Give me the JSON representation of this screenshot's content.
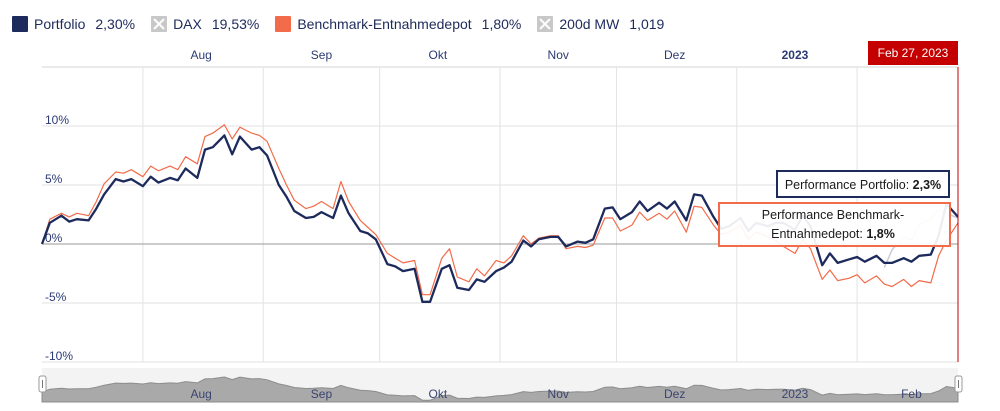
{
  "legend": [
    {
      "name": "Portfolio",
      "value": "2,30%",
      "color": "#1d2a5c",
      "hidden": false
    },
    {
      "name": "DAX",
      "value": "19,53%",
      "color": "#c8c8c8",
      "hidden": true
    },
    {
      "name": "Benchmark-Entnahmedepot",
      "value": "1,80%",
      "color": "#f26b4a",
      "hidden": false
    },
    {
      "name": "200d MW",
      "value": "1,019",
      "color": "#c8c8c8",
      "hidden": true
    }
  ],
  "crosshair": {
    "label": "Feb 27, 2023",
    "color": "#c40000"
  },
  "tooltips": {
    "portfolio": {
      "label": "Performance Portfolio:",
      "value": "2,3%",
      "color": "#1d2a5c"
    },
    "benchmark": {
      "label_line1": "Performance Benchmark-",
      "label_line2": "Entnahmedepot:",
      "value": "1,8%",
      "color": "#f26b4a"
    }
  },
  "navigator": {
    "labels": [
      "Aug",
      "Sep",
      "Okt",
      "Nov",
      "Dez",
      "2023",
      "Feb"
    ]
  },
  "chart_data": {
    "type": "line",
    "x_axis": {
      "ticks": [
        "Aug",
        "Sep",
        "Okt",
        "Nov",
        "Dez",
        "2023"
      ],
      "bold_ticks": [
        "2023"
      ],
      "start": "2022-07-06",
      "end": "2023-02-27"
    },
    "y_axis": {
      "ticks": [
        "10%",
        "5%",
        "0%",
        "-5%",
        "-10%"
      ],
      "tick_values": [
        10,
        5,
        0,
        -5,
        -10
      ],
      "ylim": [
        -10,
        15
      ],
      "unit": "%"
    },
    "grid": true,
    "series": [
      {
        "name": "Portfolio",
        "color": "#1d2a5c",
        "points": [
          [
            "2022-07-06",
            0.0
          ],
          [
            "2022-07-08",
            1.8
          ],
          [
            "2022-07-11",
            2.4
          ],
          [
            "2022-07-13",
            1.9
          ],
          [
            "2022-07-15",
            2.1
          ],
          [
            "2022-07-18",
            2.0
          ],
          [
            "2022-07-20",
            3.0
          ],
          [
            "2022-07-22",
            4.2
          ],
          [
            "2022-07-25",
            5.5
          ],
          [
            "2022-07-27",
            5.3
          ],
          [
            "2022-07-29",
            5.5
          ],
          [
            "2022-08-01",
            4.9
          ],
          [
            "2022-08-03",
            5.7
          ],
          [
            "2022-08-05",
            5.2
          ],
          [
            "2022-08-08",
            5.6
          ],
          [
            "2022-08-10",
            5.4
          ],
          [
            "2022-08-12",
            6.4
          ],
          [
            "2022-08-15",
            5.6
          ],
          [
            "2022-08-17",
            8.0
          ],
          [
            "2022-08-19",
            8.2
          ],
          [
            "2022-08-22",
            9.2
          ],
          [
            "2022-08-24",
            7.6
          ],
          [
            "2022-08-26",
            9.1
          ],
          [
            "2022-08-29",
            8.0
          ],
          [
            "2022-08-31",
            8.2
          ],
          [
            "2022-09-02",
            7.5
          ],
          [
            "2022-09-05",
            5.0
          ],
          [
            "2022-09-07",
            4.0
          ],
          [
            "2022-09-09",
            2.8
          ],
          [
            "2022-09-12",
            2.2
          ],
          [
            "2022-09-14",
            2.3
          ],
          [
            "2022-09-16",
            2.7
          ],
          [
            "2022-09-19",
            2.2
          ],
          [
            "2022-09-21",
            4.1
          ],
          [
            "2022-09-23",
            2.6
          ],
          [
            "2022-09-26",
            1.1
          ],
          [
            "2022-09-28",
            0.9
          ],
          [
            "2022-09-30",
            0.4
          ],
          [
            "2022-10-03",
            -1.7
          ],
          [
            "2022-10-05",
            -1.9
          ],
          [
            "2022-10-07",
            -2.3
          ],
          [
            "2022-10-10",
            -2.1
          ],
          [
            "2022-10-12",
            -4.9
          ],
          [
            "2022-10-14",
            -4.9
          ],
          [
            "2022-10-17",
            -2.1
          ],
          [
            "2022-10-19",
            -1.8
          ],
          [
            "2022-10-21",
            -3.7
          ],
          [
            "2022-10-24",
            -3.9
          ],
          [
            "2022-10-26",
            -3.0
          ],
          [
            "2022-10-28",
            -3.2
          ],
          [
            "2022-10-31",
            -2.3
          ],
          [
            "2022-11-02",
            -2.0
          ],
          [
            "2022-11-04",
            -1.5
          ],
          [
            "2022-11-07",
            0.3
          ],
          [
            "2022-11-09",
            -0.2
          ],
          [
            "2022-11-11",
            0.4
          ],
          [
            "2022-11-14",
            0.6
          ],
          [
            "2022-11-16",
            0.6
          ],
          [
            "2022-11-18",
            -0.2
          ],
          [
            "2022-11-21",
            0.2
          ],
          [
            "2022-11-23",
            0.1
          ],
          [
            "2022-11-25",
            0.4
          ],
          [
            "2022-11-28",
            3.0
          ],
          [
            "2022-11-30",
            3.1
          ],
          [
            "2022-12-02",
            2.1
          ],
          [
            "2022-12-05",
            2.7
          ],
          [
            "2022-12-07",
            3.6
          ],
          [
            "2022-12-09",
            2.8
          ],
          [
            "2022-12-12",
            3.5
          ],
          [
            "2022-12-14",
            3.0
          ],
          [
            "2022-12-16",
            3.6
          ],
          [
            "2022-12-19",
            2.0
          ],
          [
            "2022-12-21",
            4.2
          ],
          [
            "2022-12-23",
            4.1
          ],
          [
            "2022-12-26",
            2.3
          ],
          [
            "2022-12-28",
            1.3
          ],
          [
            "2022-12-30",
            1.5
          ],
          [
            "2023-01-02",
            2.2
          ],
          [
            "2023-01-04",
            1.1
          ],
          [
            "2023-01-06",
            1.8
          ],
          [
            "2023-01-09",
            1.5
          ],
          [
            "2023-01-11",
            1.8
          ],
          [
            "2023-01-13",
            1.8
          ],
          [
            "2023-01-16",
            1.2
          ],
          [
            "2023-01-18",
            2.4
          ],
          [
            "2023-01-20",
            1.5
          ],
          [
            "2023-01-23",
            -1.8
          ],
          [
            "2023-01-25",
            -0.8
          ],
          [
            "2023-01-27",
            -1.6
          ],
          [
            "2023-01-30",
            -1.3
          ],
          [
            "2023-02-01",
            -1.1
          ],
          [
            "2023-02-03",
            -1.5
          ],
          [
            "2023-02-06",
            -1.0
          ],
          [
            "2023-02-08",
            -1.6
          ],
          [
            "2023-02-10",
            -1.6
          ],
          [
            "2023-02-13",
            -1.2
          ],
          [
            "2023-02-15",
            -1.5
          ],
          [
            "2023-02-17",
            -1.0
          ],
          [
            "2023-02-20",
            -0.9
          ],
          [
            "2023-02-22",
            0.7
          ],
          [
            "2023-02-24",
            3.4
          ],
          [
            "2023-02-27",
            2.3
          ]
        ]
      },
      {
        "name": "Benchmark-Entnahmedepot",
        "color": "#f26b4a",
        "points": [
          [
            "2022-07-06",
            0.0
          ],
          [
            "2022-07-08",
            2.1
          ],
          [
            "2022-07-11",
            2.6
          ],
          [
            "2022-07-13",
            2.3
          ],
          [
            "2022-07-15",
            2.6
          ],
          [
            "2022-07-18",
            2.4
          ],
          [
            "2022-07-20",
            3.6
          ],
          [
            "2022-07-22",
            5.1
          ],
          [
            "2022-07-25",
            6.1
          ],
          [
            "2022-07-27",
            6.0
          ],
          [
            "2022-07-29",
            6.3
          ],
          [
            "2022-08-01",
            5.7
          ],
          [
            "2022-08-03",
            6.6
          ],
          [
            "2022-08-05",
            6.2
          ],
          [
            "2022-08-08",
            6.6
          ],
          [
            "2022-08-10",
            6.3
          ],
          [
            "2022-08-12",
            7.4
          ],
          [
            "2022-08-15",
            6.8
          ],
          [
            "2022-08-17",
            9.1
          ],
          [
            "2022-08-19",
            9.4
          ],
          [
            "2022-08-22",
            10.1
          ],
          [
            "2022-08-24",
            8.9
          ],
          [
            "2022-08-26",
            9.9
          ],
          [
            "2022-08-29",
            9.4
          ],
          [
            "2022-08-31",
            9.2
          ],
          [
            "2022-09-02",
            8.7
          ],
          [
            "2022-09-05",
            6.4
          ],
          [
            "2022-09-07",
            5.0
          ],
          [
            "2022-09-09",
            3.7
          ],
          [
            "2022-09-12",
            3.0
          ],
          [
            "2022-09-14",
            3.2
          ],
          [
            "2022-09-16",
            3.6
          ],
          [
            "2022-09-19",
            3.0
          ],
          [
            "2022-09-21",
            5.3
          ],
          [
            "2022-09-23",
            3.6
          ],
          [
            "2022-09-26",
            2.0
          ],
          [
            "2022-09-28",
            1.4
          ],
          [
            "2022-09-30",
            0.8
          ],
          [
            "2022-10-03",
            -0.8
          ],
          [
            "2022-10-05",
            -1.2
          ],
          [
            "2022-10-07",
            -1.6
          ],
          [
            "2022-10-10",
            -1.4
          ],
          [
            "2022-10-12",
            -4.3
          ],
          [
            "2022-10-14",
            -4.3
          ],
          [
            "2022-10-17",
            -1.2
          ],
          [
            "2022-10-19",
            -0.4
          ],
          [
            "2022-10-21",
            -2.8
          ],
          [
            "2022-10-24",
            -3.2
          ],
          [
            "2022-10-26",
            -2.1
          ],
          [
            "2022-10-28",
            -2.7
          ],
          [
            "2022-10-31",
            -1.4
          ],
          [
            "2022-11-02",
            -1.6
          ],
          [
            "2022-11-04",
            -1.0
          ],
          [
            "2022-11-07",
            0.7
          ],
          [
            "2022-11-09",
            0.0
          ],
          [
            "2022-11-11",
            0.5
          ],
          [
            "2022-11-14",
            0.7
          ],
          [
            "2022-11-16",
            0.7
          ],
          [
            "2022-11-18",
            -0.4
          ],
          [
            "2022-11-21",
            -0.2
          ],
          [
            "2022-11-23",
            -0.3
          ],
          [
            "2022-11-25",
            -0.1
          ],
          [
            "2022-11-28",
            2.2
          ],
          [
            "2022-11-30",
            2.2
          ],
          [
            "2022-12-02",
            1.1
          ],
          [
            "2022-12-05",
            1.6
          ],
          [
            "2022-12-07",
            2.7
          ],
          [
            "2022-12-09",
            2.0
          ],
          [
            "2022-12-12",
            2.6
          ],
          [
            "2022-12-14",
            2.1
          ],
          [
            "2022-12-16",
            2.8
          ],
          [
            "2022-12-19",
            1.0
          ],
          [
            "2022-12-21",
            3.2
          ],
          [
            "2022-12-23",
            3.1
          ],
          [
            "2022-12-26",
            1.6
          ],
          [
            "2022-12-28",
            0.8
          ],
          [
            "2022-12-30",
            1.0
          ],
          [
            "2023-01-02",
            1.6
          ],
          [
            "2023-01-04",
            0.4
          ],
          [
            "2023-01-06",
            1.0
          ],
          [
            "2023-01-09",
            0.6
          ],
          [
            "2023-01-11",
            0.3
          ],
          [
            "2023-01-13",
            -0.2
          ],
          [
            "2023-01-16",
            -0.8
          ],
          [
            "2023-01-18",
            0.4
          ],
          [
            "2023-01-20",
            -0.4
          ],
          [
            "2023-01-23",
            -3.0
          ],
          [
            "2023-01-25",
            -2.2
          ],
          [
            "2023-01-27",
            -3.1
          ],
          [
            "2023-01-30",
            -2.9
          ],
          [
            "2023-02-01",
            -2.6
          ],
          [
            "2023-02-03",
            -3.3
          ],
          [
            "2023-02-06",
            -2.7
          ],
          [
            "2023-02-08",
            -3.4
          ],
          [
            "2023-02-10",
            -3.6
          ],
          [
            "2023-02-13",
            -3.0
          ],
          [
            "2023-02-15",
            -3.6
          ],
          [
            "2023-02-17",
            -3.1
          ],
          [
            "2023-02-20",
            -3.3
          ],
          [
            "2023-02-22",
            -1.0
          ],
          [
            "2023-02-24",
            0.3
          ],
          [
            "2023-02-27",
            1.8
          ]
        ]
      },
      {
        "name": "DAX",
        "color": "#c9cbd6",
        "hidden": true,
        "points": [
          [
            "2023-02-08",
            -2.0
          ],
          [
            "2023-02-10",
            -0.5
          ],
          [
            "2023-02-13",
            0.6
          ],
          [
            "2023-02-15",
            0.3
          ],
          [
            "2023-02-17",
            1.6
          ],
          [
            "2023-02-20",
            2.1
          ],
          [
            "2023-02-22",
            2.9
          ],
          [
            "2023-02-24",
            2.6
          ],
          [
            "2023-02-27",
            2.2
          ]
        ]
      }
    ]
  }
}
